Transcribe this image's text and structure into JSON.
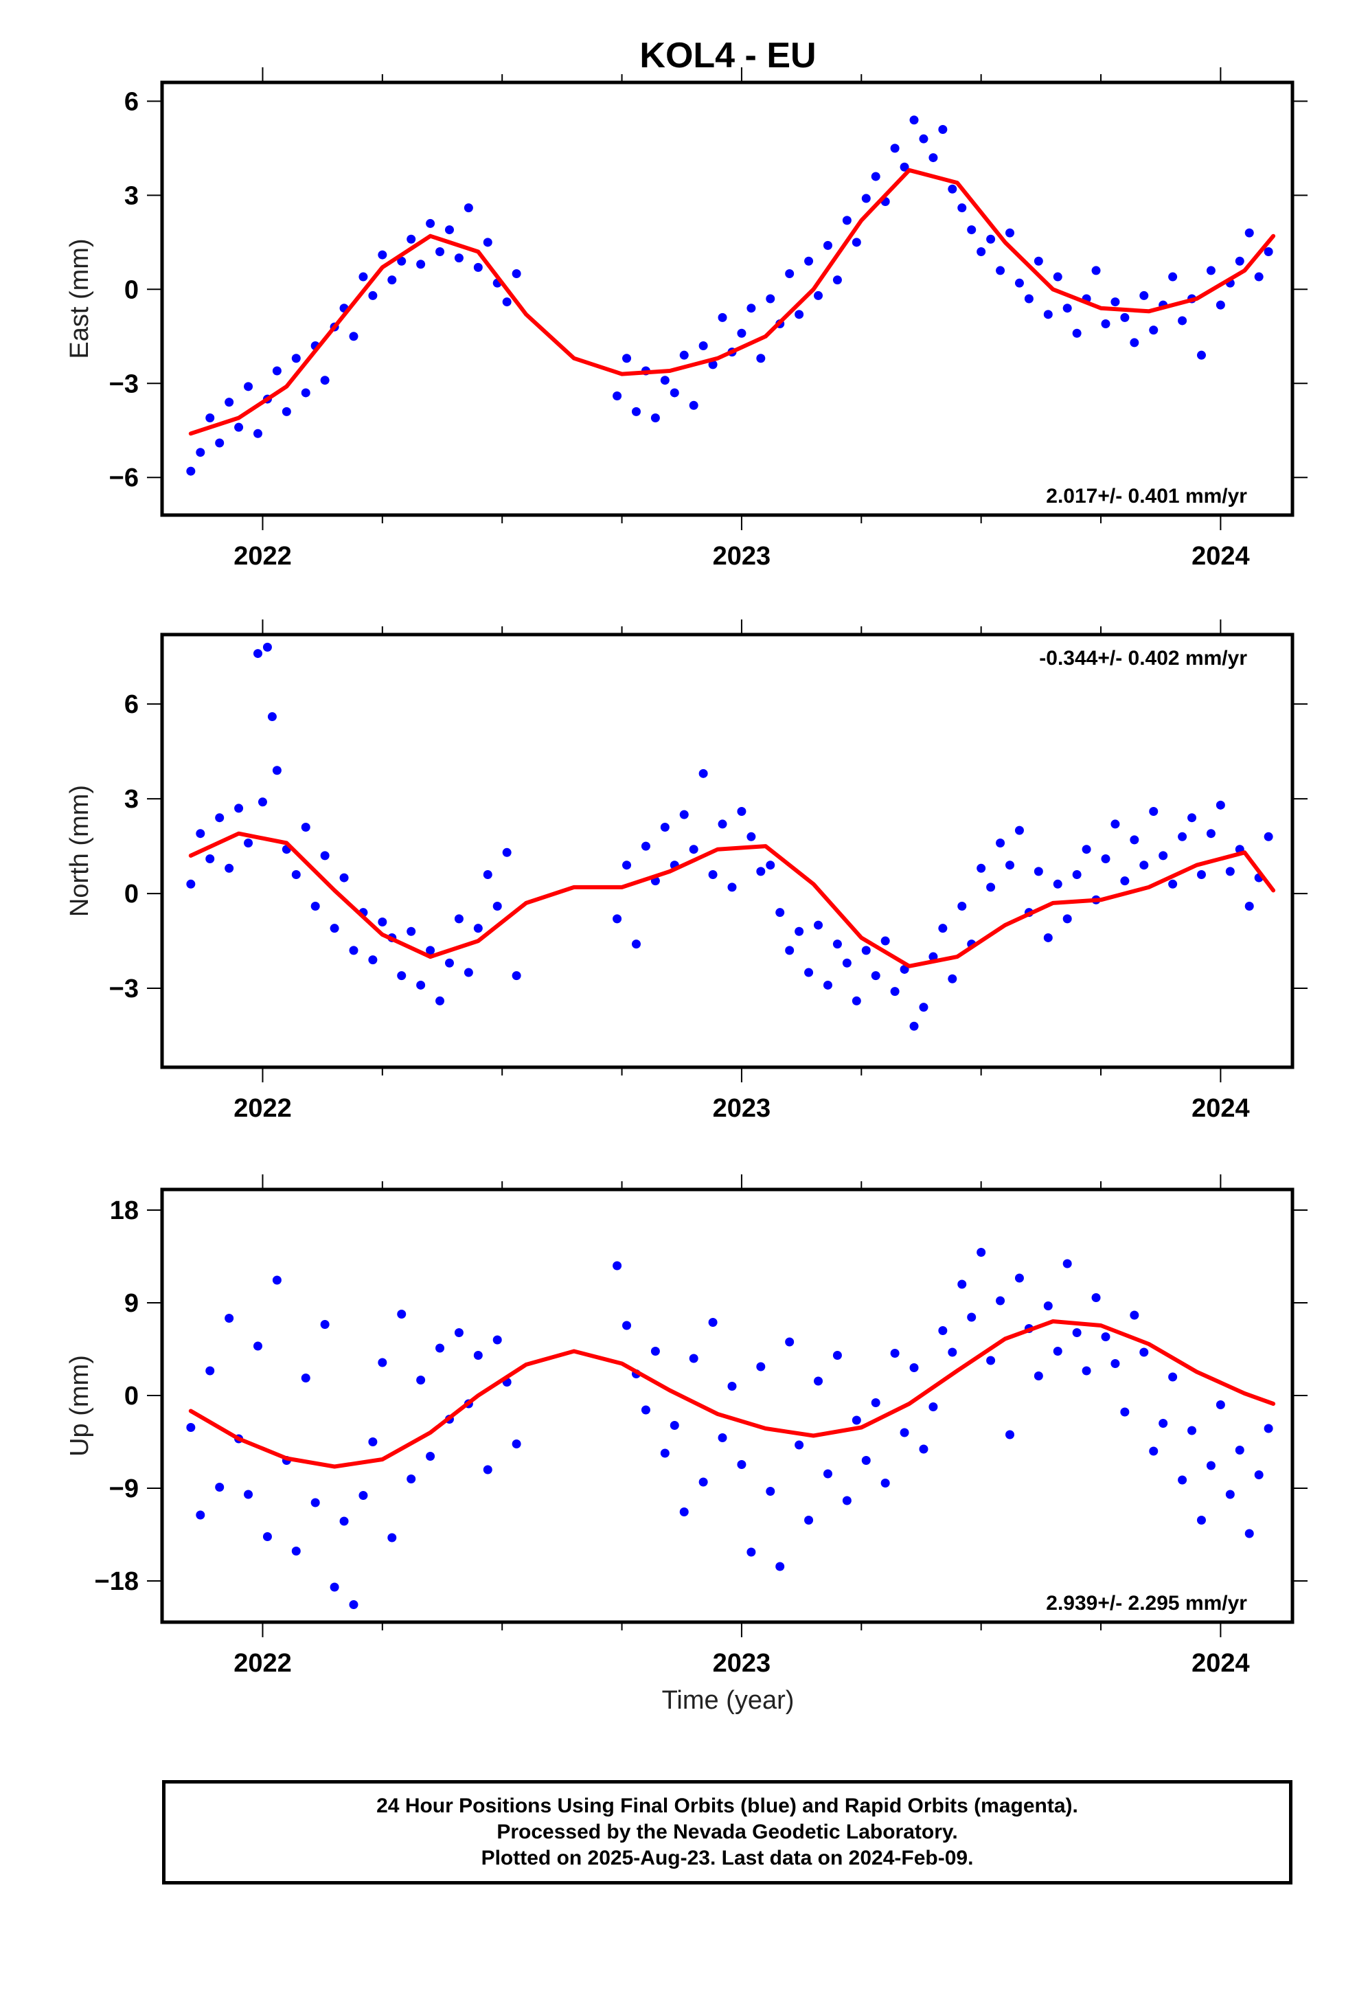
{
  "title": "KOL4 - EU",
  "footer": {
    "line1": "24 Hour Positions Using Final Orbits (blue) and Rapid Orbits (magenta).",
    "line2": "Processed by the Nevada Geodetic Laboratory.",
    "line3": "Plotted on 2025-Aug-23. Last data on 2024-Feb-09."
  },
  "colors": {
    "points": "#0000ff",
    "fit": "#ff0000",
    "frame": "#000000"
  },
  "chart_data": [
    {
      "type": "scatter",
      "ylabel": "East (mm)",
      "xlabel": "",
      "rate_label": "2.017+/- 0.401 mm/yr",
      "rate_position": "bottom-right",
      "xlim": [
        2021.79,
        2024.15
      ],
      "ylim": [
        -7.2,
        6.6
      ],
      "xticks": [
        2022,
        2023,
        2024
      ],
      "xtick_labels": [
        "2022",
        "2023",
        "2024"
      ],
      "yticks": [
        -6,
        -3,
        0,
        3,
        6
      ],
      "ytick_labels": [
        "−6",
        "−3",
        "0",
        "3",
        "6"
      ],
      "series": [
        {
          "kind": "scatter",
          "x": [
            2021.85,
            2021.87,
            2021.89,
            2021.91,
            2021.93,
            2021.95,
            2021.97,
            2021.99,
            2022.01,
            2022.03,
            2022.05,
            2022.07,
            2022.09,
            2022.11,
            2022.13,
            2022.15,
            2022.17,
            2022.19,
            2022.21,
            2022.23,
            2022.25,
            2022.27,
            2022.29,
            2022.31,
            2022.33,
            2022.35,
            2022.37,
            2022.39,
            2022.41,
            2022.43,
            2022.45,
            2022.47,
            2022.49,
            2022.51,
            2022.53,
            2022.74,
            2022.76,
            2022.78,
            2022.8,
            2022.82,
            2022.84,
            2022.86,
            2022.88,
            2022.9,
            2022.92,
            2022.94,
            2022.96,
            2022.98,
            2023.0,
            2023.02,
            2023.04,
            2023.06,
            2023.08,
            2023.1,
            2023.12,
            2023.14,
            2023.16,
            2023.18,
            2023.2,
            2023.22,
            2023.24,
            2023.26,
            2023.28,
            2023.3,
            2023.32,
            2023.34,
            2023.36,
            2023.38,
            2023.4,
            2023.42,
            2023.44,
            2023.46,
            2023.48,
            2023.5,
            2023.52,
            2023.54,
            2023.56,
            2023.58,
            2023.6,
            2023.62,
            2023.64,
            2023.66,
            2023.68,
            2023.7,
            2023.72,
            2023.74,
            2023.76,
            2023.78,
            2023.8,
            2023.82,
            2023.84,
            2023.86,
            2023.88,
            2023.9,
            2023.92,
            2023.94,
            2023.96,
            2023.98,
            2024.0,
            2024.02,
            2024.04,
            2024.06,
            2024.08,
            2024.1
          ],
          "y": [
            -5.8,
            -5.2,
            -4.1,
            -4.9,
            -3.6,
            -4.4,
            -3.1,
            -4.6,
            -3.5,
            -2.6,
            -3.9,
            -2.2,
            -3.3,
            -1.8,
            -2.9,
            -1.2,
            -0.6,
            -1.5,
            0.4,
            -0.2,
            1.1,
            0.3,
            0.9,
            1.6,
            0.8,
            2.1,
            1.2,
            1.9,
            1.0,
            2.6,
            0.7,
            1.5,
            0.2,
            -0.4,
            0.5,
            -3.4,
            -2.2,
            -3.9,
            -2.6,
            -4.1,
            -2.9,
            -3.3,
            -2.1,
            -3.7,
            -1.8,
            -2.4,
            -0.9,
            -2.0,
            -1.4,
            -0.6,
            -2.2,
            -0.3,
            -1.1,
            0.5,
            -0.8,
            0.9,
            -0.2,
            1.4,
            0.3,
            2.2,
            1.5,
            2.9,
            3.6,
            2.8,
            4.5,
            3.9,
            5.4,
            4.8,
            4.2,
            5.1,
            3.2,
            2.6,
            1.9,
            1.2,
            1.6,
            0.6,
            1.8,
            0.2,
            -0.3,
            0.9,
            -0.8,
            0.4,
            -0.6,
            -1.4,
            -0.3,
            0.6,
            -1.1,
            -0.4,
            -0.9,
            -1.7,
            -0.2,
            -1.3,
            -0.5,
            0.4,
            -1.0,
            -0.3,
            -2.1,
            0.6,
            -0.5,
            0.2,
            0.9,
            1.8,
            0.4,
            1.2
          ],
          "name": ""
        },
        {
          "kind": "line",
          "x": [
            2021.85,
            2021.95,
            2022.05,
            2022.15,
            2022.25,
            2022.35,
            2022.45,
            2022.55,
            2022.65,
            2022.75,
            2022.85,
            2022.95,
            2023.05,
            2023.15,
            2023.25,
            2023.35,
            2023.45,
            2023.55,
            2023.65,
            2023.75,
            2023.85,
            2023.95,
            2024.05,
            2024.11
          ],
          "y": [
            -4.6,
            -4.1,
            -3.1,
            -1.2,
            0.7,
            1.7,
            1.2,
            -0.8,
            -2.2,
            -2.7,
            -2.6,
            -2.2,
            -1.5,
            0.0,
            2.2,
            3.8,
            3.4,
            1.5,
            0.0,
            -0.6,
            -0.7,
            -0.3,
            0.6,
            1.7
          ],
          "name": ""
        }
      ]
    },
    {
      "type": "scatter",
      "ylabel": "North (mm)",
      "xlabel": "",
      "rate_label": "-0.344+/- 0.402 mm/yr",
      "rate_position": "top-right",
      "xlim": [
        2021.79,
        2024.15
      ],
      "ylim": [
        -5.5,
        8.2
      ],
      "xticks": [
        2022,
        2023,
        2024
      ],
      "xtick_labels": [
        "2022",
        "2023",
        "2024"
      ],
      "yticks": [
        -3,
        0,
        3,
        6
      ],
      "ytick_labels": [
        "−3",
        "0",
        "3",
        "6"
      ],
      "series": [
        {
          "kind": "scatter",
          "x": [
            2021.85,
            2021.87,
            2021.89,
            2021.91,
            2021.93,
            2021.95,
            2021.97,
            2021.99,
            2022.0,
            2022.01,
            2022.02,
            2022.03,
            2022.05,
            2022.07,
            2022.09,
            2022.11,
            2022.13,
            2022.15,
            2022.17,
            2022.19,
            2022.21,
            2022.23,
            2022.25,
            2022.27,
            2022.29,
            2022.31,
            2022.33,
            2022.35,
            2022.37,
            2022.39,
            2022.41,
            2022.43,
            2022.45,
            2022.47,
            2022.49,
            2022.51,
            2022.53,
            2022.74,
            2022.76,
            2022.78,
            2022.8,
            2022.82,
            2022.84,
            2022.86,
            2022.88,
            2022.9,
            2022.92,
            2022.94,
            2022.96,
            2022.98,
            2023.0,
            2023.02,
            2023.04,
            2023.06,
            2023.08,
            2023.1,
            2023.12,
            2023.14,
            2023.16,
            2023.18,
            2023.2,
            2023.22,
            2023.24,
            2023.26,
            2023.28,
            2023.3,
            2023.32,
            2023.34,
            2023.36,
            2023.38,
            2023.4,
            2023.42,
            2023.44,
            2023.46,
            2023.48,
            2023.5,
            2023.52,
            2023.54,
            2023.56,
            2023.58,
            2023.6,
            2023.62,
            2023.64,
            2023.66,
            2023.68,
            2023.7,
            2023.72,
            2023.74,
            2023.76,
            2023.78,
            2023.8,
            2023.82,
            2023.84,
            2023.86,
            2023.88,
            2023.9,
            2023.92,
            2023.94,
            2023.96,
            2023.98,
            2024.0,
            2024.02,
            2024.04,
            2024.06,
            2024.08,
            2024.1
          ],
          "y": [
            0.3,
            1.9,
            1.1,
            2.4,
            0.8,
            2.7,
            1.6,
            7.6,
            2.9,
            7.8,
            5.6,
            3.9,
            1.4,
            0.6,
            2.1,
            -0.4,
            1.2,
            -1.1,
            0.5,
            -1.8,
            -0.6,
            -2.1,
            -0.9,
            -1.4,
            -2.6,
            -1.2,
            -2.9,
            -1.8,
            -3.4,
            -2.2,
            -0.8,
            -2.5,
            -1.1,
            0.6,
            -0.4,
            1.3,
            -2.6,
            -0.8,
            0.9,
            -1.6,
            1.5,
            0.4,
            2.1,
            0.9,
            2.5,
            1.4,
            3.8,
            0.6,
            2.2,
            0.2,
            2.6,
            1.8,
            0.7,
            0.9,
            -0.6,
            -1.8,
            -1.2,
            -2.5,
            -1.0,
            -2.9,
            -1.6,
            -2.2,
            -3.4,
            -1.8,
            -2.6,
            -1.5,
            -3.1,
            -2.4,
            -4.2,
            -3.6,
            -2.0,
            -1.1,
            -2.7,
            -0.4,
            -1.6,
            0.8,
            0.2,
            1.6,
            0.9,
            2.0,
            -0.6,
            0.7,
            -1.4,
            0.3,
            -0.8,
            0.6,
            1.4,
            -0.2,
            1.1,
            2.2,
            0.4,
            1.7,
            0.9,
            2.6,
            1.2,
            0.3,
            1.8,
            2.4,
            0.6,
            1.9,
            2.8,
            0.7,
            1.4,
            -0.4,
            0.5,
            1.8
          ],
          "name": ""
        },
        {
          "kind": "line",
          "x": [
            2021.85,
            2021.95,
            2022.05,
            2022.15,
            2022.25,
            2022.35,
            2022.45,
            2022.55,
            2022.65,
            2022.75,
            2022.85,
            2022.95,
            2023.05,
            2023.15,
            2023.25,
            2023.35,
            2023.45,
            2023.55,
            2023.65,
            2023.75,
            2023.85,
            2023.95,
            2024.05,
            2024.11
          ],
          "y": [
            1.2,
            1.9,
            1.6,
            0.1,
            -1.3,
            -2.0,
            -1.5,
            -0.3,
            0.2,
            0.2,
            0.7,
            1.4,
            1.5,
            0.3,
            -1.4,
            -2.3,
            -2.0,
            -1.0,
            -0.3,
            -0.2,
            0.2,
            0.9,
            1.3,
            0.1
          ],
          "name": ""
        }
      ]
    },
    {
      "type": "scatter",
      "ylabel": "Up (mm)",
      "xlabel": "Time (year)",
      "rate_label": "2.939+/- 2.295 mm/yr",
      "rate_position": "bottom-right",
      "xlim": [
        2021.79,
        2024.15
      ],
      "ylim": [
        -22,
        20
      ],
      "xticks": [
        2022,
        2023,
        2024
      ],
      "xtick_labels": [
        "2022",
        "2023",
        "2024"
      ],
      "yticks": [
        -18,
        -9,
        0,
        9,
        18
      ],
      "ytick_labels": [
        "−18",
        "−9",
        "0",
        "9",
        "18"
      ],
      "series": [
        {
          "kind": "scatter",
          "x": [
            2021.85,
            2021.87,
            2021.89,
            2021.91,
            2021.93,
            2021.95,
            2021.97,
            2021.99,
            2022.01,
            2022.03,
            2022.05,
            2022.07,
            2022.09,
            2022.11,
            2022.13,
            2022.15,
            2022.17,
            2022.19,
            2022.21,
            2022.23,
            2022.25,
            2022.27,
            2022.29,
            2022.31,
            2022.33,
            2022.35,
            2022.37,
            2022.39,
            2022.41,
            2022.43,
            2022.45,
            2022.47,
            2022.49,
            2022.51,
            2022.53,
            2022.74,
            2022.76,
            2022.78,
            2022.8,
            2022.82,
            2022.84,
            2022.86,
            2022.88,
            2022.9,
            2022.92,
            2022.94,
            2022.96,
            2022.98,
            2023.0,
            2023.02,
            2023.04,
            2023.06,
            2023.08,
            2023.1,
            2023.12,
            2023.14,
            2023.16,
            2023.18,
            2023.2,
            2023.22,
            2023.24,
            2023.26,
            2023.28,
            2023.3,
            2023.32,
            2023.34,
            2023.36,
            2023.38,
            2023.4,
            2023.42,
            2023.44,
            2023.46,
            2023.48,
            2023.5,
            2023.52,
            2023.54,
            2023.56,
            2023.58,
            2023.6,
            2023.62,
            2023.64,
            2023.66,
            2023.68,
            2023.7,
            2023.72,
            2023.74,
            2023.76,
            2023.78,
            2023.8,
            2023.82,
            2023.84,
            2023.86,
            2023.88,
            2023.9,
            2023.92,
            2023.94,
            2023.96,
            2023.98,
            2024.0,
            2024.02,
            2024.04,
            2024.06,
            2024.08,
            2024.1
          ],
          "y": [
            -3.1,
            -11.6,
            2.4,
            -8.9,
            7.5,
            -4.2,
            -9.6,
            4.8,
            -13.7,
            11.2,
            -6.3,
            -15.1,
            1.7,
            -10.4,
            6.9,
            -18.6,
            -12.2,
            -20.3,
            -9.7,
            -4.5,
            3.2,
            -13.8,
            7.9,
            -8.1,
            1.5,
            -5.9,
            4.6,
            -2.3,
            6.1,
            -0.8,
            3.9,
            -7.2,
            5.4,
            1.3,
            -4.7,
            12.6,
            6.8,
            2.1,
            -1.4,
            4.3,
            -5.6,
            -2.9,
            -11.3,
            3.6,
            -8.4,
            7.1,
            -4.1,
            0.9,
            -6.7,
            -15.2,
            2.8,
            -9.3,
            -16.6,
            5.2,
            -4.8,
            -12.1,
            1.4,
            -7.6,
            3.9,
            -10.2,
            -2.4,
            -6.3,
            -0.7,
            -8.5,
            4.1,
            -3.6,
            2.7,
            -5.2,
            -1.1,
            6.3,
            4.2,
            10.8,
            7.6,
            13.9,
            3.4,
            9.2,
            -3.8,
            11.4,
            6.5,
            1.9,
            8.7,
            4.3,
            12.8,
            6.1,
            2.4,
            9.5,
            5.7,
            3.1,
            -1.6,
            7.8,
            4.2,
            -5.4,
            -2.7,
            1.8,
            -8.2,
            -3.4,
            -12.1,
            -6.8,
            -0.9,
            -9.6,
            -5.3,
            -13.4,
            -7.7,
            -3.2
          ],
          "name": ""
        },
        {
          "kind": "line",
          "x": [
            2021.85,
            2021.95,
            2022.05,
            2022.15,
            2022.25,
            2022.35,
            2022.45,
            2022.55,
            2022.65,
            2022.75,
            2022.85,
            2022.95,
            2023.05,
            2023.15,
            2023.25,
            2023.35,
            2023.45,
            2023.55,
            2023.65,
            2023.75,
            2023.85,
            2023.95,
            2024.05,
            2024.11
          ],
          "y": [
            -1.5,
            -4.2,
            -6.1,
            -6.9,
            -6.2,
            -3.6,
            0.0,
            3.0,
            4.3,
            3.1,
            0.5,
            -1.8,
            -3.2,
            -3.9,
            -3.1,
            -0.8,
            2.4,
            5.5,
            7.2,
            6.8,
            5.0,
            2.3,
            0.2,
            -0.8
          ],
          "name": ""
        }
      ]
    }
  ]
}
